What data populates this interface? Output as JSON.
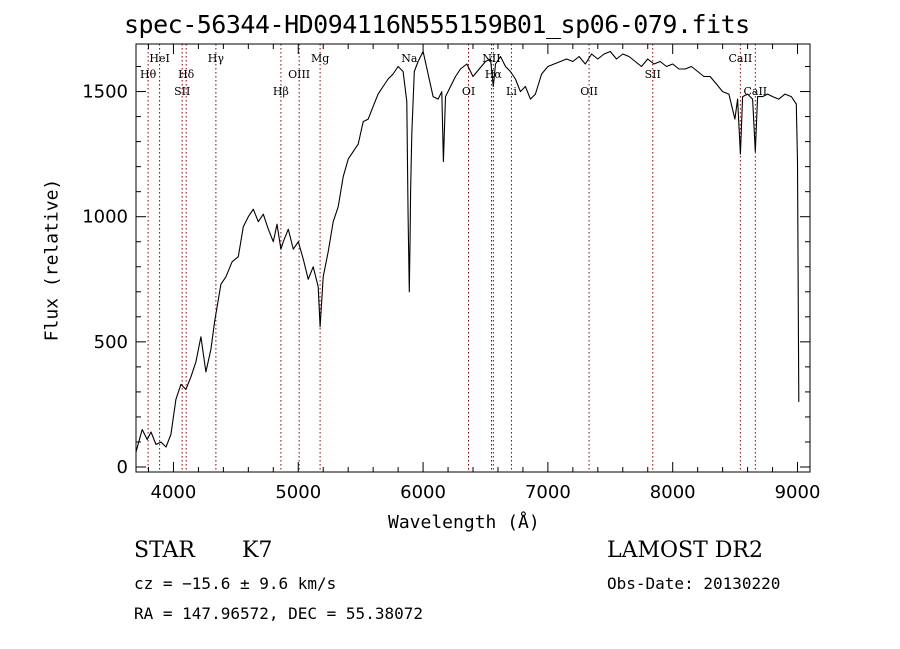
{
  "chart_data": {
    "type": "line",
    "title": "spec-56344-HD094116N555159B01_sp06-079.fits",
    "xlabel": "Wavelength (Å)",
    "ylabel": "Flux (relative)",
    "xlim": [
      3700,
      9100
    ],
    "ylim": [
      -20,
      1690
    ],
    "x_ticks": [
      4000,
      5000,
      6000,
      7000,
      8000,
      9000
    ],
    "y_ticks": [
      0,
      500,
      1000,
      1500
    ],
    "x_tick_labels": [
      "4000",
      "5000",
      "6000",
      "7000",
      "8000",
      "9000"
    ],
    "y_tick_labels": [
      "0",
      "500",
      "1000",
      "1500"
    ],
    "grid": false,
    "series": [
      {
        "x": [
          3700,
          3750,
          3790,
          3820,
          3860,
          3900,
          3940,
          3980,
          4020,
          4060,
          4100,
          4140,
          4180,
          4220,
          4260,
          4300,
          4330,
          4380,
          4420,
          4470,
          4520,
          4560,
          4600,
          4640,
          4680,
          4720,
          4760,
          4800,
          4830,
          4861,
          4880,
          4920,
          4960,
          5000,
          5040,
          5080,
          5120,
          5160,
          5175,
          5200,
          5240,
          5280,
          5320,
          5360,
          5400,
          5440,
          5480,
          5520,
          5560,
          5600,
          5640,
          5680,
          5720,
          5760,
          5800,
          5840,
          5870,
          5880,
          5890,
          5896,
          5900,
          5910,
          5930,
          5960,
          6000,
          6040,
          6080,
          6120,
          6150,
          6163,
          6180,
          6220,
          6260,
          6300,
          6350,
          6400,
          6450,
          6500,
          6540,
          6563,
          6580,
          6620,
          6660,
          6700,
          6740,
          6780,
          6820,
          6860,
          6900,
          6950,
          7000,
          7050,
          7100,
          7150,
          7200,
          7250,
          7300,
          7350,
          7400,
          7450,
          7500,
          7550,
          7600,
          7650,
          7700,
          7750,
          7800,
          7850,
          7900,
          7950,
          8000,
          8050,
          8100,
          8150,
          8200,
          8250,
          8300,
          8350,
          8400,
          8450,
          8498,
          8520,
          8542,
          8560,
          8600,
          8640,
          8662,
          8680,
          8720,
          8760,
          8800,
          8850,
          8900,
          8950,
          8990,
          9000,
          9010
        ],
        "y": [
          60,
          150,
          110,
          140,
          90,
          100,
          80,
          130,
          270,
          330,
          310,
          360,
          420,
          520,
          380,
          470,
          580,
          730,
          760,
          820,
          840,
          960,
          1000,
          1030,
          980,
          1010,
          950,
          900,
          970,
          870,
          900,
          950,
          870,
          900,
          830,
          750,
          800,
          720,
          560,
          760,
          860,
          980,
          1040,
          1160,
          1230,
          1260,
          1290,
          1380,
          1390,
          1440,
          1490,
          1520,
          1550,
          1570,
          1600,
          1580,
          1460,
          1000,
          700,
          920,
          1100,
          1330,
          1580,
          1620,
          1660,
          1570,
          1480,
          1470,
          1500,
          1220,
          1480,
          1520,
          1560,
          1590,
          1610,
          1560,
          1590,
          1620,
          1630,
          1520,
          1610,
          1640,
          1600,
          1580,
          1550,
          1500,
          1520,
          1470,
          1490,
          1570,
          1600,
          1610,
          1620,
          1630,
          1620,
          1640,
          1610,
          1650,
          1630,
          1650,
          1660,
          1630,
          1650,
          1640,
          1620,
          1600,
          1630,
          1610,
          1620,
          1600,
          1610,
          1590,
          1590,
          1600,
          1580,
          1560,
          1560,
          1530,
          1500,
          1490,
          1390,
          1470,
          1250,
          1480,
          1490,
          1470,
          1260,
          1480,
          1480,
          1490,
          1480,
          1470,
          1490,
          1480,
          1450,
          1220,
          260
        ]
      }
    ],
    "annotations": [
      {
        "label": "Hθ",
        "x": 3797,
        "row": 2
      },
      {
        "label": "HeI",
        "x": 3889,
        "row": 1
      },
      {
        "label": "Hδ",
        "x": 4102,
        "row": 2
      },
      {
        "label": "SII",
        "x": 4070,
        "row": 3
      },
      {
        "label": "Hγ",
        "x": 4340,
        "row": 1
      },
      {
        "label": "Hβ",
        "x": 4861,
        "row": 3
      },
      {
        "label": "OIII",
        "x": 5007,
        "row": 2
      },
      {
        "label": "Mg",
        "x": 5175,
        "row": 1
      },
      {
        "label": "OI",
        "x": 6364,
        "row": 3
      },
      {
        "label": "Na",
        "x": 5890,
        "row": 1
      },
      {
        "label": "NII",
        "x": 6548,
        "row": 1
      },
      {
        "label": "Hα",
        "x": 6563,
        "row": 2
      },
      {
        "label": "Li",
        "x": 6708,
        "row": 3
      },
      {
        "label": "OII",
        "x": 7330,
        "row": 3
      },
      {
        "label": "SII",
        "x": 7840,
        "row": 2
      },
      {
        "label": "CaII",
        "x": 8542,
        "row": 1
      },
      {
        "label": "CaII",
        "x": 8662,
        "row": 3
      }
    ],
    "line_markers": [
      3797,
      3889,
      4070,
      4102,
      4340,
      4861,
      5007,
      5175,
      6364,
      6548,
      6563,
      6708,
      7330,
      7840,
      8542,
      8662
    ]
  },
  "info": {
    "object_class": "STAR",
    "subclass": "K7",
    "survey": "LAMOST DR2",
    "cz": "cz = −15.6 ± 9.6 km/s",
    "obs_date": "Obs-Date: 20130220",
    "coords": "RA = 147.96572, DEC =  55.38072"
  },
  "colors": {
    "line": "#000000",
    "marker": "#8b0000"
  }
}
